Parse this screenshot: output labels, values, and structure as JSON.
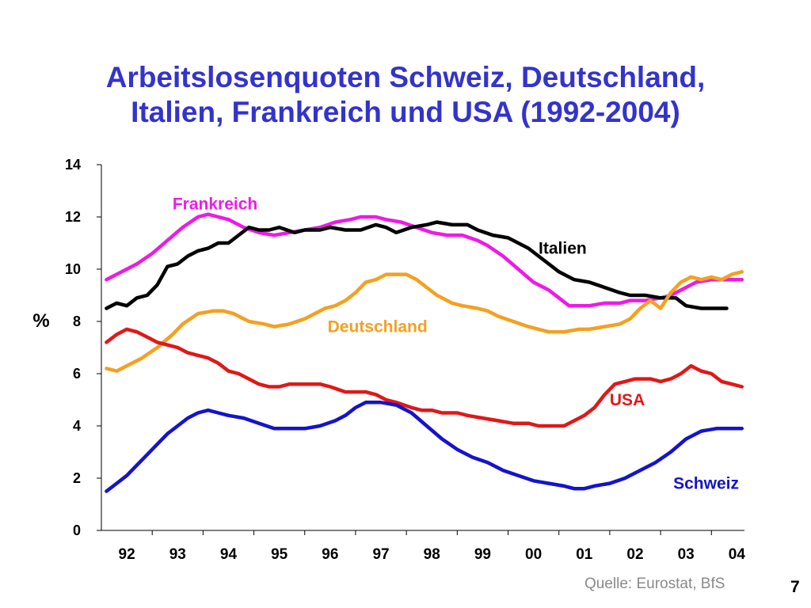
{
  "slide": {
    "title_line1": "Arbeitslosenquoten Schweiz, Deutschland,",
    "title_line2": "Italien, Frankreich und USA (1992-2004)",
    "source": "Quelle: Eurostat, BfS",
    "page_number": "7"
  },
  "chart_data": {
    "type": "line",
    "title": "Arbeitslosenquoten Schweiz, Deutschland, Italien, Frankreich und USA (1992-2004)",
    "ylabel": "%",
    "xlabel": "",
    "ylim": [
      0,
      14
    ],
    "yticks": [
      0,
      2,
      4,
      6,
      8,
      10,
      12,
      14
    ],
    "xlim": [
      1991.5,
      2004.15
    ],
    "xtick_labels": [
      "92",
      "93",
      "94",
      "95",
      "96",
      "97",
      "98",
      "99",
      "00",
      "01",
      "02",
      "03",
      "04"
    ],
    "xtick_values": [
      1992,
      1993,
      1994,
      1995,
      1996,
      1997,
      1998,
      1999,
      2000,
      2001,
      2002,
      2003,
      2004
    ],
    "grid": false,
    "legend": "inline labels",
    "series": [
      {
        "name": "Frankreich",
        "color": "#ee1ae6",
        "label_at": [
          1992.9,
          12.5
        ],
        "points": [
          [
            1991.6,
            9.6
          ],
          [
            1991.9,
            9.9
          ],
          [
            1992.2,
            10.2
          ],
          [
            1992.5,
            10.6
          ],
          [
            1992.8,
            11.1
          ],
          [
            1993.1,
            11.6
          ],
          [
            1993.4,
            12.0
          ],
          [
            1993.6,
            12.1
          ],
          [
            1993.8,
            12.0
          ],
          [
            1994.0,
            11.9
          ],
          [
            1994.3,
            11.6
          ],
          [
            1994.6,
            11.4
          ],
          [
            1994.9,
            11.3
          ],
          [
            1995.2,
            11.4
          ],
          [
            1995.5,
            11.5
          ],
          [
            1995.8,
            11.6
          ],
          [
            1996.1,
            11.8
          ],
          [
            1996.4,
            11.9
          ],
          [
            1996.6,
            12.0
          ],
          [
            1996.9,
            12.0
          ],
          [
            1997.1,
            11.9
          ],
          [
            1997.4,
            11.8
          ],
          [
            1997.7,
            11.6
          ],
          [
            1998.0,
            11.4
          ],
          [
            1998.3,
            11.3
          ],
          [
            1998.6,
            11.3
          ],
          [
            1998.9,
            11.1
          ],
          [
            1999.1,
            10.9
          ],
          [
            1999.4,
            10.5
          ],
          [
            1999.7,
            10.0
          ],
          [
            2000.0,
            9.5
          ],
          [
            2000.3,
            9.2
          ],
          [
            2000.5,
            8.9
          ],
          [
            2000.7,
            8.6
          ],
          [
            2000.9,
            8.6
          ],
          [
            2001.1,
            8.6
          ],
          [
            2001.4,
            8.7
          ],
          [
            2001.7,
            8.7
          ],
          [
            2001.9,
            8.8
          ],
          [
            2002.2,
            8.8
          ],
          [
            2002.5,
            8.9
          ],
          [
            2002.7,
            9.0
          ],
          [
            2002.9,
            9.2
          ],
          [
            2003.2,
            9.5
          ],
          [
            2003.5,
            9.6
          ],
          [
            2003.8,
            9.6
          ],
          [
            2004.1,
            9.6
          ]
        ]
      },
      {
        "name": "Italien",
        "color": "#000000",
        "label_at": [
          2000.1,
          10.8
        ],
        "points": [
          [
            1991.6,
            8.5
          ],
          [
            1991.8,
            8.7
          ],
          [
            1992.0,
            8.6
          ],
          [
            1992.2,
            8.9
          ],
          [
            1992.4,
            9.0
          ],
          [
            1992.6,
            9.4
          ],
          [
            1992.8,
            10.1
          ],
          [
            1993.0,
            10.2
          ],
          [
            1993.2,
            10.5
          ],
          [
            1993.4,
            10.7
          ],
          [
            1993.6,
            10.8
          ],
          [
            1993.8,
            11.0
          ],
          [
            1994.0,
            11.0
          ],
          [
            1994.2,
            11.3
          ],
          [
            1994.4,
            11.6
          ],
          [
            1994.6,
            11.5
          ],
          [
            1994.8,
            11.5
          ],
          [
            1995.0,
            11.6
          ],
          [
            1995.3,
            11.4
          ],
          [
            1995.5,
            11.5
          ],
          [
            1995.8,
            11.5
          ],
          [
            1996.0,
            11.6
          ],
          [
            1996.3,
            11.5
          ],
          [
            1996.6,
            11.5
          ],
          [
            1996.9,
            11.7
          ],
          [
            1997.1,
            11.6
          ],
          [
            1997.3,
            11.4
          ],
          [
            1997.6,
            11.6
          ],
          [
            1997.9,
            11.7
          ],
          [
            1998.1,
            11.8
          ],
          [
            1998.4,
            11.7
          ],
          [
            1998.7,
            11.7
          ],
          [
            1998.9,
            11.5
          ],
          [
            1999.2,
            11.3
          ],
          [
            1999.5,
            11.2
          ],
          [
            1999.7,
            11.0
          ],
          [
            1999.9,
            10.8
          ],
          [
            2000.1,
            10.5
          ],
          [
            2000.3,
            10.2
          ],
          [
            2000.5,
            9.9
          ],
          [
            2000.8,
            9.6
          ],
          [
            2001.1,
            9.5
          ],
          [
            2001.4,
            9.3
          ],
          [
            2001.7,
            9.1
          ],
          [
            2001.9,
            9.0
          ],
          [
            2002.2,
            9.0
          ],
          [
            2002.5,
            8.9
          ],
          [
            2002.8,
            8.9
          ],
          [
            2003.0,
            8.6
          ],
          [
            2003.3,
            8.5
          ],
          [
            2003.6,
            8.5
          ],
          [
            2003.8,
            8.5
          ]
        ]
      },
      {
        "name": "Deutschland",
        "color": "#f5a020",
        "label_at": [
          1995.95,
          7.8
        ],
        "points": [
          [
            1991.6,
            6.2
          ],
          [
            1991.8,
            6.1
          ],
          [
            1992.0,
            6.3
          ],
          [
            1992.3,
            6.6
          ],
          [
            1992.6,
            7.0
          ],
          [
            1992.9,
            7.5
          ],
          [
            1993.1,
            7.9
          ],
          [
            1993.4,
            8.3
          ],
          [
            1993.7,
            8.4
          ],
          [
            1993.9,
            8.4
          ],
          [
            1994.1,
            8.3
          ],
          [
            1994.4,
            8.0
          ],
          [
            1994.7,
            7.9
          ],
          [
            1994.9,
            7.8
          ],
          [
            1995.2,
            7.9
          ],
          [
            1995.5,
            8.1
          ],
          [
            1995.7,
            8.3
          ],
          [
            1995.9,
            8.5
          ],
          [
            1996.1,
            8.6
          ],
          [
            1996.3,
            8.8
          ],
          [
            1996.5,
            9.1
          ],
          [
            1996.7,
            9.5
          ],
          [
            1996.9,
            9.6
          ],
          [
            1997.1,
            9.8
          ],
          [
            1997.3,
            9.8
          ],
          [
            1997.5,
            9.8
          ],
          [
            1997.7,
            9.6
          ],
          [
            1997.9,
            9.3
          ],
          [
            1998.1,
            9.0
          ],
          [
            1998.4,
            8.7
          ],
          [
            1998.6,
            8.6
          ],
          [
            1998.9,
            8.5
          ],
          [
            1999.1,
            8.4
          ],
          [
            1999.3,
            8.2
          ],
          [
            1999.6,
            8.0
          ],
          [
            1999.9,
            7.8
          ],
          [
            2000.1,
            7.7
          ],
          [
            2000.3,
            7.6
          ],
          [
            2000.6,
            7.6
          ],
          [
            2000.9,
            7.7
          ],
          [
            2001.1,
            7.7
          ],
          [
            2001.4,
            7.8
          ],
          [
            2001.7,
            7.9
          ],
          [
            2001.9,
            8.1
          ],
          [
            2002.1,
            8.5
          ],
          [
            2002.3,
            8.8
          ],
          [
            2002.5,
            8.5
          ],
          [
            2002.7,
            9.1
          ],
          [
            2002.9,
            9.5
          ],
          [
            2003.1,
            9.7
          ],
          [
            2003.3,
            9.6
          ],
          [
            2003.5,
            9.7
          ],
          [
            2003.7,
            9.6
          ],
          [
            2003.9,
            9.8
          ],
          [
            2004.1,
            9.9
          ]
        ]
      },
      {
        "name": "USA",
        "color": "#e01818",
        "label_at": [
          2001.5,
          5.0
        ],
        "points": [
          [
            1991.6,
            7.2
          ],
          [
            1991.8,
            7.5
          ],
          [
            1992.0,
            7.7
          ],
          [
            1992.2,
            7.6
          ],
          [
            1992.4,
            7.4
          ],
          [
            1992.6,
            7.2
          ],
          [
            1992.8,
            7.1
          ],
          [
            1993.0,
            7.0
          ],
          [
            1993.2,
            6.8
          ],
          [
            1993.4,
            6.7
          ],
          [
            1993.6,
            6.6
          ],
          [
            1993.8,
            6.4
          ],
          [
            1994.0,
            6.1
          ],
          [
            1994.2,
            6.0
          ],
          [
            1994.4,
            5.8
          ],
          [
            1994.6,
            5.6
          ],
          [
            1994.8,
            5.5
          ],
          [
            1995.0,
            5.5
          ],
          [
            1995.2,
            5.6
          ],
          [
            1995.5,
            5.6
          ],
          [
            1995.8,
            5.6
          ],
          [
            1996.0,
            5.5
          ],
          [
            1996.3,
            5.3
          ],
          [
            1996.5,
            5.3
          ],
          [
            1996.7,
            5.3
          ],
          [
            1996.9,
            5.2
          ],
          [
            1997.1,
            5.0
          ],
          [
            1997.3,
            4.9
          ],
          [
            1997.6,
            4.7
          ],
          [
            1997.8,
            4.6
          ],
          [
            1998.0,
            4.6
          ],
          [
            1998.2,
            4.5
          ],
          [
            1998.5,
            4.5
          ],
          [
            1998.7,
            4.4
          ],
          [
            1999.0,
            4.3
          ],
          [
            1999.3,
            4.2
          ],
          [
            1999.6,
            4.1
          ],
          [
            1999.9,
            4.1
          ],
          [
            2000.1,
            4.0
          ],
          [
            2000.4,
            4.0
          ],
          [
            2000.6,
            4.0
          ],
          [
            2000.8,
            4.2
          ],
          [
            2001.0,
            4.4
          ],
          [
            2001.2,
            4.7
          ],
          [
            2001.4,
            5.2
          ],
          [
            2001.6,
            5.6
          ],
          [
            2001.8,
            5.7
          ],
          [
            2002.0,
            5.8
          ],
          [
            2002.3,
            5.8
          ],
          [
            2002.5,
            5.7
          ],
          [
            2002.7,
            5.8
          ],
          [
            2002.9,
            6.0
          ],
          [
            2003.1,
            6.3
          ],
          [
            2003.3,
            6.1
          ],
          [
            2003.5,
            6.0
          ],
          [
            2003.7,
            5.7
          ],
          [
            2003.9,
            5.6
          ],
          [
            2004.1,
            5.5
          ]
        ]
      },
      {
        "name": "Schweiz",
        "color": "#1414cc",
        "label_at": [
          2002.75,
          1.8
        ],
        "points": [
          [
            1991.6,
            1.5
          ],
          [
            1991.8,
            1.8
          ],
          [
            1992.0,
            2.1
          ],
          [
            1992.2,
            2.5
          ],
          [
            1992.4,
            2.9
          ],
          [
            1992.6,
            3.3
          ],
          [
            1992.8,
            3.7
          ],
          [
            1993.0,
            4.0
          ],
          [
            1993.2,
            4.3
          ],
          [
            1993.4,
            4.5
          ],
          [
            1993.6,
            4.6
          ],
          [
            1993.8,
            4.5
          ],
          [
            1994.0,
            4.4
          ],
          [
            1994.3,
            4.3
          ],
          [
            1994.6,
            4.1
          ],
          [
            1994.9,
            3.9
          ],
          [
            1995.2,
            3.9
          ],
          [
            1995.5,
            3.9
          ],
          [
            1995.8,
            4.0
          ],
          [
            1996.1,
            4.2
          ],
          [
            1996.3,
            4.4
          ],
          [
            1996.5,
            4.7
          ],
          [
            1996.7,
            4.9
          ],
          [
            1997.0,
            4.9
          ],
          [
            1997.3,
            4.8
          ],
          [
            1997.6,
            4.5
          ],
          [
            1997.9,
            4.0
          ],
          [
            1998.2,
            3.5
          ],
          [
            1998.5,
            3.1
          ],
          [
            1998.8,
            2.8
          ],
          [
            1999.1,
            2.6
          ],
          [
            1999.4,
            2.3
          ],
          [
            1999.7,
            2.1
          ],
          [
            2000.0,
            1.9
          ],
          [
            2000.3,
            1.8
          ],
          [
            2000.6,
            1.7
          ],
          [
            2000.8,
            1.6
          ],
          [
            2001.0,
            1.6
          ],
          [
            2001.2,
            1.7
          ],
          [
            2001.5,
            1.8
          ],
          [
            2001.8,
            2.0
          ],
          [
            2002.1,
            2.3
          ],
          [
            2002.4,
            2.6
          ],
          [
            2002.7,
            3.0
          ],
          [
            2003.0,
            3.5
          ],
          [
            2003.3,
            3.8
          ],
          [
            2003.6,
            3.9
          ],
          [
            2003.8,
            3.9
          ],
          [
            2004.1,
            3.9
          ]
        ]
      }
    ]
  }
}
